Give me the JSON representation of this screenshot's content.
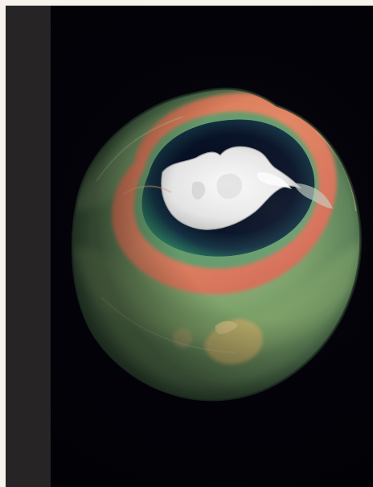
{
  "image": {
    "subject": "",
    "colors": {
      "page_background": "#f7f3ec",
      "binding_strip": "#272425",
      "space_background": "#020208",
      "ozone_hole_core": "#071126",
      "ozone_ring_red": "#ee765a",
      "ozone_mid_green": "#8bb37a",
      "globe_outer_green": "#5f865c",
      "antarctica_ice": "#f2f2f2",
      "australia": "#c9b36d"
    },
    "icons": [
      "ozone-globe-visualization"
    ]
  }
}
